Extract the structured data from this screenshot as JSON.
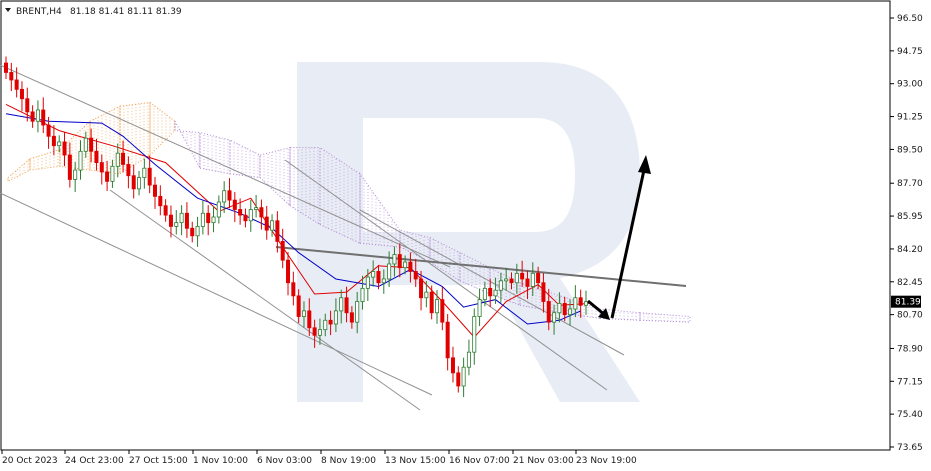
{
  "header": {
    "symbol": "BRENT,H4",
    "ohlc": "81.18 81.41 81.11 81.39",
    "menu_icon": "triangle-down-icon"
  },
  "price_label": {
    "value": "81.39",
    "color": "#000000"
  },
  "colors": {
    "bull_body": "#ffffff",
    "bull_wick": "#2e7d32",
    "bear_body": "#e00000",
    "tenkan": "#e00000",
    "kijun": "#0000c8",
    "cloud_orange": "#f0a050",
    "cloud_purple": "#b28ad8",
    "trendline": "#808080",
    "arrow": "#000000",
    "watermark": "#e8edf5"
  },
  "chart_data": {
    "type": "candlestick",
    "symbol": "BRENT",
    "timeframe": "H4",
    "ylim": [
      73.65,
      97.3
    ],
    "y_ticks": [
      "96.50",
      "94.75",
      "93.00",
      "91.25",
      "89.50",
      "87.70",
      "85.95",
      "84.20",
      "82.45",
      "80.70",
      "78.90",
      "77.15",
      "75.40",
      "73.65"
    ],
    "x_ticks": [
      "20 Oct 2023",
      "24 Oct 23:00",
      "27 Oct 15:00",
      "1 Nov 10:00",
      "6 Nov 03:00",
      "8 Nov 19:00",
      "13 Nov 15:00",
      "16 Nov 07:00",
      "21 Nov 03:00",
      "23 Nov 19:00"
    ],
    "last_price": 81.39,
    "closes": [
      93.6,
      93.2,
      92.7,
      92.2,
      91.5,
      91.0,
      91.6,
      90.8,
      90.2,
      89.7,
      89.9,
      89.2,
      87.9,
      88.4,
      89.4,
      90.1,
      89.4,
      88.8,
      88.3,
      87.8,
      88.6,
      89.3,
      88.7,
      88.1,
      87.4,
      88.0,
      88.5,
      87.6,
      87.0,
      86.5,
      86.0,
      85.4,
      85.6,
      86.1,
      85.3,
      84.9,
      85.4,
      86.1,
      85.6,
      85.9,
      86.7,
      87.3,
      86.8,
      86.3,
      86.0,
      85.7,
      86.3,
      86.4,
      85.9,
      85.2,
      85.7,
      84.6,
      83.6,
      82.4,
      81.7,
      80.6,
      80.9,
      80.0,
      79.6,
      79.9,
      80.4,
      80.2,
      80.9,
      81.6,
      80.8,
      80.3,
      81.4,
      82.1,
      82.7,
      83.0,
      82.4,
      82.6,
      83.4,
      83.9,
      83.2,
      83.5,
      83.0,
      82.6,
      81.6,
      81.9,
      80.8,
      81.5,
      80.3,
      78.4,
      77.6,
      76.9,
      77.9,
      78.7,
      80.6,
      81.5,
      82.1,
      81.7,
      82.0,
      82.5,
      82.6,
      82.4,
      82.9,
      82.6,
      82.2,
      82.9,
      82.4,
      81.4,
      80.3,
      80.8,
      81.3,
      80.7,
      81.0,
      81.6,
      81.2,
      81.39
    ],
    "series": [
      {
        "name": "",
        "points": [
          [
            0,
            91.9
          ],
          [
            10,
            90.5
          ],
          [
            20,
            89.7
          ],
          [
            30,
            88.8
          ],
          [
            40,
            86.2
          ],
          [
            46,
            86.9
          ],
          [
            52,
            84.3
          ],
          [
            58,
            81.8
          ],
          [
            64,
            81.9
          ],
          [
            70,
            83.3
          ],
          [
            76,
            83.2
          ],
          [
            82,
            81.4
          ],
          [
            88,
            79.5
          ],
          [
            94,
            81.4
          ],
          [
            100,
            82.3
          ],
          [
            104,
            81.2
          ],
          [
            110,
            81.3
          ]
        ]
      },
      {
        "name": "",
        "points": [
          [
            0,
            91.4
          ],
          [
            8,
            91.0
          ],
          [
            18,
            90.9
          ],
          [
            22,
            90.2
          ],
          [
            28,
            88.7
          ],
          [
            36,
            86.9
          ],
          [
            44,
            86.1
          ],
          [
            50,
            85.3
          ],
          [
            55,
            84.0
          ],
          [
            62,
            82.6
          ],
          [
            70,
            82.2
          ],
          [
            76,
            83.1
          ],
          [
            82,
            82.2
          ],
          [
            86,
            81.1
          ],
          [
            92,
            81.5
          ],
          [
            98,
            80.2
          ],
          [
            104,
            80.4
          ],
          [
            108,
            80.9
          ]
        ]
      }
    ],
    "annotations": [
      "trendlines",
      "ichimoku-cloud",
      "forecast-arrow-up"
    ]
  }
}
